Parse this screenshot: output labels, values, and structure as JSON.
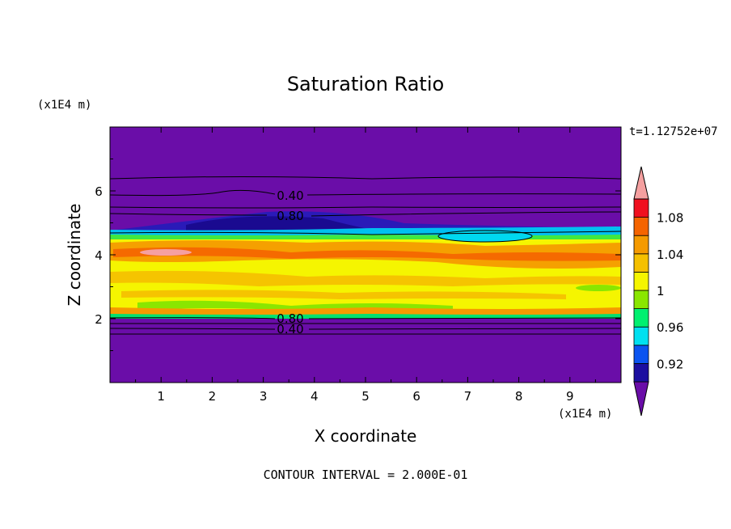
{
  "chart_data": {
    "type": "heatmap",
    "title": "Saturation Ratio",
    "xlabel": "X coordinate",
    "ylabel": "Z coordinate",
    "x_unit": "(x1E4 m)",
    "y_unit": "(x1E4 m)",
    "time_label": "t=1.12752e+07",
    "footer": "CONTOUR INTERVAL = 2.000E-01",
    "xlim": [
      0,
      10
    ],
    "ylim": [
      0,
      8
    ],
    "x_ticks": [
      "1",
      "2",
      "3",
      "4",
      "5",
      "6",
      "7",
      "8",
      "9"
    ],
    "y_ticks": [
      "2",
      "4",
      "6"
    ],
    "contour_labels": [
      "0.40",
      "0.80",
      "0.80",
      "0.40"
    ],
    "colorbar": {
      "tick_labels": [
        "1.08",
        "1.04",
        "1",
        "0.96",
        "0.92"
      ],
      "colors": [
        "#6a0da8",
        "#1c0fa0",
        "#0b54f0",
        "#00e0f0",
        "#00f070",
        "#8ae600",
        "#f5f500",
        "#f5c000",
        "#f59a00",
        "#f56400",
        "#f0101f",
        "#f5a0a0"
      ]
    },
    "colors": {
      "background": "#6a0da8",
      "dark_blue": "#2a1ab8",
      "cyan": "#00d8f0",
      "green": "#40e840",
      "yellow": "#f5f500",
      "orange": "#f59a00",
      "red": "#f56400",
      "pink": "#f5a0a0"
    }
  }
}
